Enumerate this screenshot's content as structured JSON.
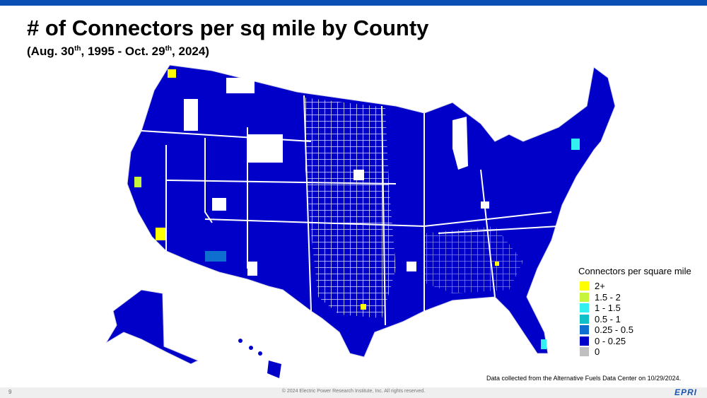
{
  "header": {
    "title": "# of Connectors per sq mile by County",
    "subtitle": [
      "(Aug. 30",
      "th",
      ", 1995 - Oct. 29",
      "th",
      ", 2024)"
    ]
  },
  "legend": {
    "title": "Connectors per square mile",
    "items": [
      {
        "label": "2+",
        "color": "#ffff00"
      },
      {
        "label": "1.5 - 2",
        "color": "#c6f53c"
      },
      {
        "label": "1 - 1.5",
        "color": "#33f0f0"
      },
      {
        "label": "0.5 - 1",
        "color": "#10c0c8"
      },
      {
        "label": "0.25 - 0.5",
        "color": "#0f6fd0"
      },
      {
        "label": "0 - 0.25",
        "color": "#0000c8"
      },
      {
        "label": "0",
        "color": "#c0c0c0"
      }
    ]
  },
  "source": "Data collected from the Alternative Fuels Data Center  on 10/29/2024.",
  "footer": {
    "page": "9",
    "copyright": "© 2024 Electric Power Research Institute, Inc. All rights reserved.",
    "logo": "EPRI"
  }
}
